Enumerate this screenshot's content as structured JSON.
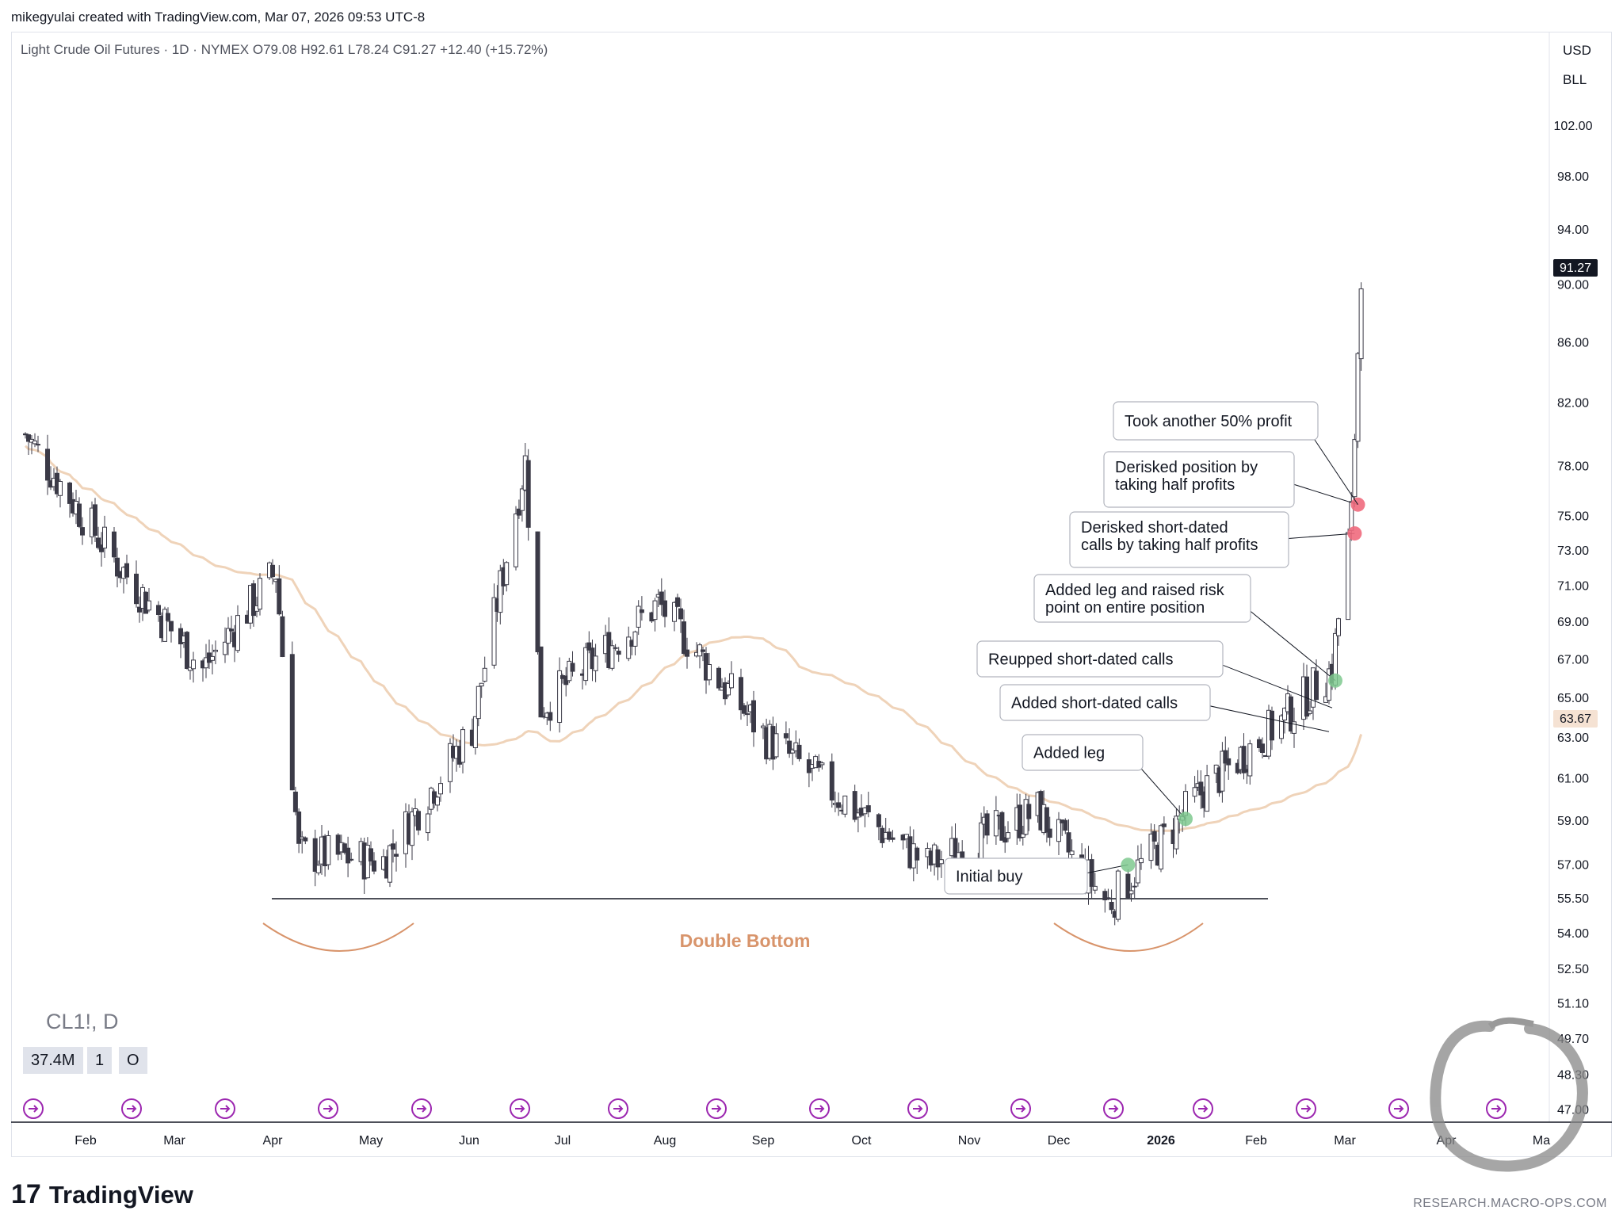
{
  "header": {
    "credit": "mikegyulai created with TradingView.com, Mar 07, 2026 09:53 UTC-8"
  },
  "legend": {
    "text": "Light Crude Oil Futures · 1D · NYMEX  O79.08  H92.61  L78.24  C91.27  +12.40 (+15.72%)"
  },
  "currency": {
    "usd": "USD",
    "unit": "BLL"
  },
  "price_badges": {
    "last": "91.27",
    "ma": "63.67"
  },
  "symbol": "CL1!, D",
  "volume_boxes": [
    "37.4M",
    "1",
    "O"
  ],
  "footer": {
    "logo_mark": "17",
    "logo_text": "TradingView",
    "research": "RESEARCH.MACRO-OPS.COM"
  },
  "colors": {
    "down_candle": "#3b3a47",
    "up_candle": "#ffffff",
    "ma_line": "#efd3b9",
    "accent_orange": "#d8946b",
    "buy_marker": "#7fc98f",
    "sell_marker": "#f06a7d",
    "event_icon": "#9c27b0"
  },
  "chart_data": {
    "type": "candlestick",
    "y_ticks": [
      "102.00",
      "98.00",
      "94.00",
      "90.00",
      "86.00",
      "82.00",
      "78.00",
      "75.00",
      "73.00",
      "71.00",
      "69.00",
      "67.00",
      "65.00",
      "63.00",
      "61.00",
      "59.00",
      "57.00",
      "55.50",
      "54.00",
      "52.50",
      "51.10",
      "49.70",
      "48.30",
      "47.00"
    ],
    "x_ticks": [
      "Feb",
      "Mar",
      "Apr",
      "May",
      "Jun",
      "Jul",
      "Aug",
      "Sep",
      "Oct",
      "Nov",
      "Dec",
      "2026",
      "Feb",
      "Mar",
      "Apr",
      "Ma"
    ],
    "y_scale": "log",
    "ohlc_keypoints": [
      {
        "date": "2025-01-13",
        "price": 80.0
      },
      {
        "date": "2025-02-10",
        "price": 72.5
      },
      {
        "date": "2025-03-10",
        "price": 66.5
      },
      {
        "date": "2025-04-02",
        "price": 71.8
      },
      {
        "date": "2025-04-09",
        "price": 57.5
      },
      {
        "date": "2025-05-05",
        "price": 57.2
      },
      {
        "date": "2025-06-02",
        "price": 63.5
      },
      {
        "date": "2025-06-19",
        "price": 78.3
      },
      {
        "date": "2025-06-24",
        "price": 64.5
      },
      {
        "date": "2025-07-30",
        "price": 70.0
      },
      {
        "date": "2025-09-02",
        "price": 63.0
      },
      {
        "date": "2025-10-20",
        "price": 57.0
      },
      {
        "date": "2025-11-24",
        "price": 59.5
      },
      {
        "date": "2025-12-16",
        "price": 55.3
      },
      {
        "date": "2026-01-15",
        "price": 60.5
      },
      {
        "date": "2026-02-10",
        "price": 64.0
      },
      {
        "date": "2026-02-25",
        "price": 66.5
      },
      {
        "date": "2026-03-03",
        "price": 75.0
      },
      {
        "date": "2026-03-06",
        "price": 91.27
      }
    ],
    "last_close": 91.27,
    "moving_average_last": 63.67,
    "support_line": 55.5,
    "pattern_label": "Double Bottom",
    "annotations": [
      {
        "text": [
          "Initial buy"
        ],
        "marker": "buy",
        "date": "2025-12-22",
        "price": 57.0
      },
      {
        "text": [
          "Added leg"
        ],
        "marker": "buy",
        "date": "2026-01-09",
        "price": 59.1
      },
      {
        "text": [
          "Added short-dated calls"
        ],
        "marker": "none",
        "date": "2026-02-24",
        "price": 63.3
      },
      {
        "text": [
          "Reupped short-dated calls"
        ],
        "marker": "none",
        "date": "2026-02-25",
        "price": 64.5
      },
      {
        "text": [
          "Added leg and raised risk",
          "point on entire position"
        ],
        "marker": "buy",
        "date": "2026-02-26",
        "price": 65.9
      },
      {
        "text": [
          "Derisked short-dated",
          "calls by taking half profits"
        ],
        "marker": "sell",
        "date": "2026-03-04",
        "price": 74.0
      },
      {
        "text": [
          "Derisked position by",
          "taking half profits"
        ],
        "marker": "sell",
        "date": "2026-03-05",
        "price": 75.7
      },
      {
        "text": [
          "Took another 50% profit"
        ],
        "marker": "none",
        "date": "2026-03-05",
        "price": 75.7
      }
    ]
  }
}
